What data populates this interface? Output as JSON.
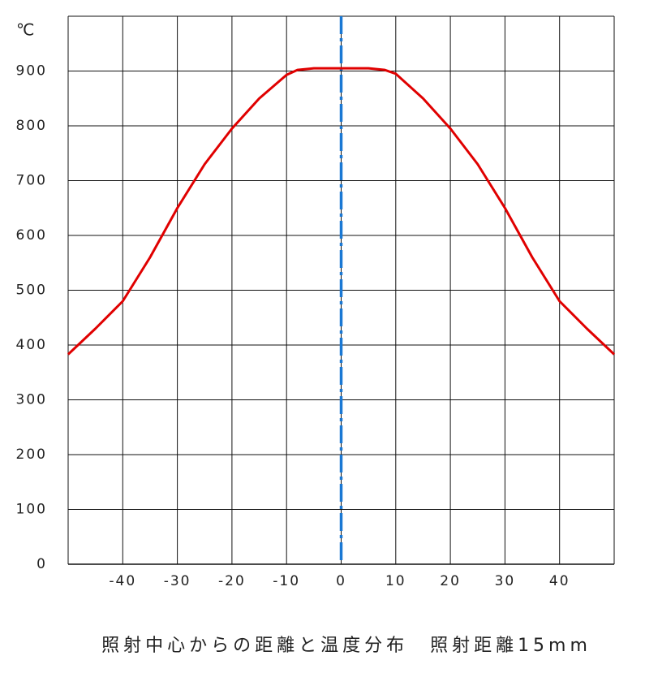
{
  "chart_data": {
    "type": "line",
    "title": "照射中心からの距離と温度分布　照射距離15mm",
    "y_unit": "℃",
    "x": [
      -50,
      -45,
      -40,
      -35,
      -30,
      -25,
      -20,
      -15,
      -10,
      -8,
      -5,
      0,
      5,
      8,
      10,
      15,
      20,
      25,
      30,
      35,
      40,
      45,
      50
    ],
    "series": [
      {
        "color": "#e00000",
        "values": [
          383,
          430,
          480,
          560,
          650,
          730,
          795,
          850,
          893,
          902,
          905,
          905,
          905,
          902,
          895,
          850,
          795,
          730,
          650,
          560,
          480,
          430,
          383
        ]
      }
    ],
    "xlim": [
      -50,
      50
    ],
    "xticks": [
      -40,
      -30,
      -20,
      -10,
      0,
      10,
      20,
      30,
      40
    ],
    "xgrid": [
      -50,
      -40,
      -30,
      -20,
      -10,
      0,
      10,
      20,
      30,
      40,
      50
    ],
    "ylim": [
      0,
      1000
    ],
    "yticks": [
      0,
      100,
      200,
      300,
      400,
      500,
      600,
      700,
      800,
      900
    ],
    "ygrid": [
      100,
      200,
      300,
      400,
      500,
      600,
      700,
      800,
      900,
      1000
    ],
    "center_line": {
      "x": 0,
      "color": "#1a78d4"
    },
    "grid": true
  }
}
